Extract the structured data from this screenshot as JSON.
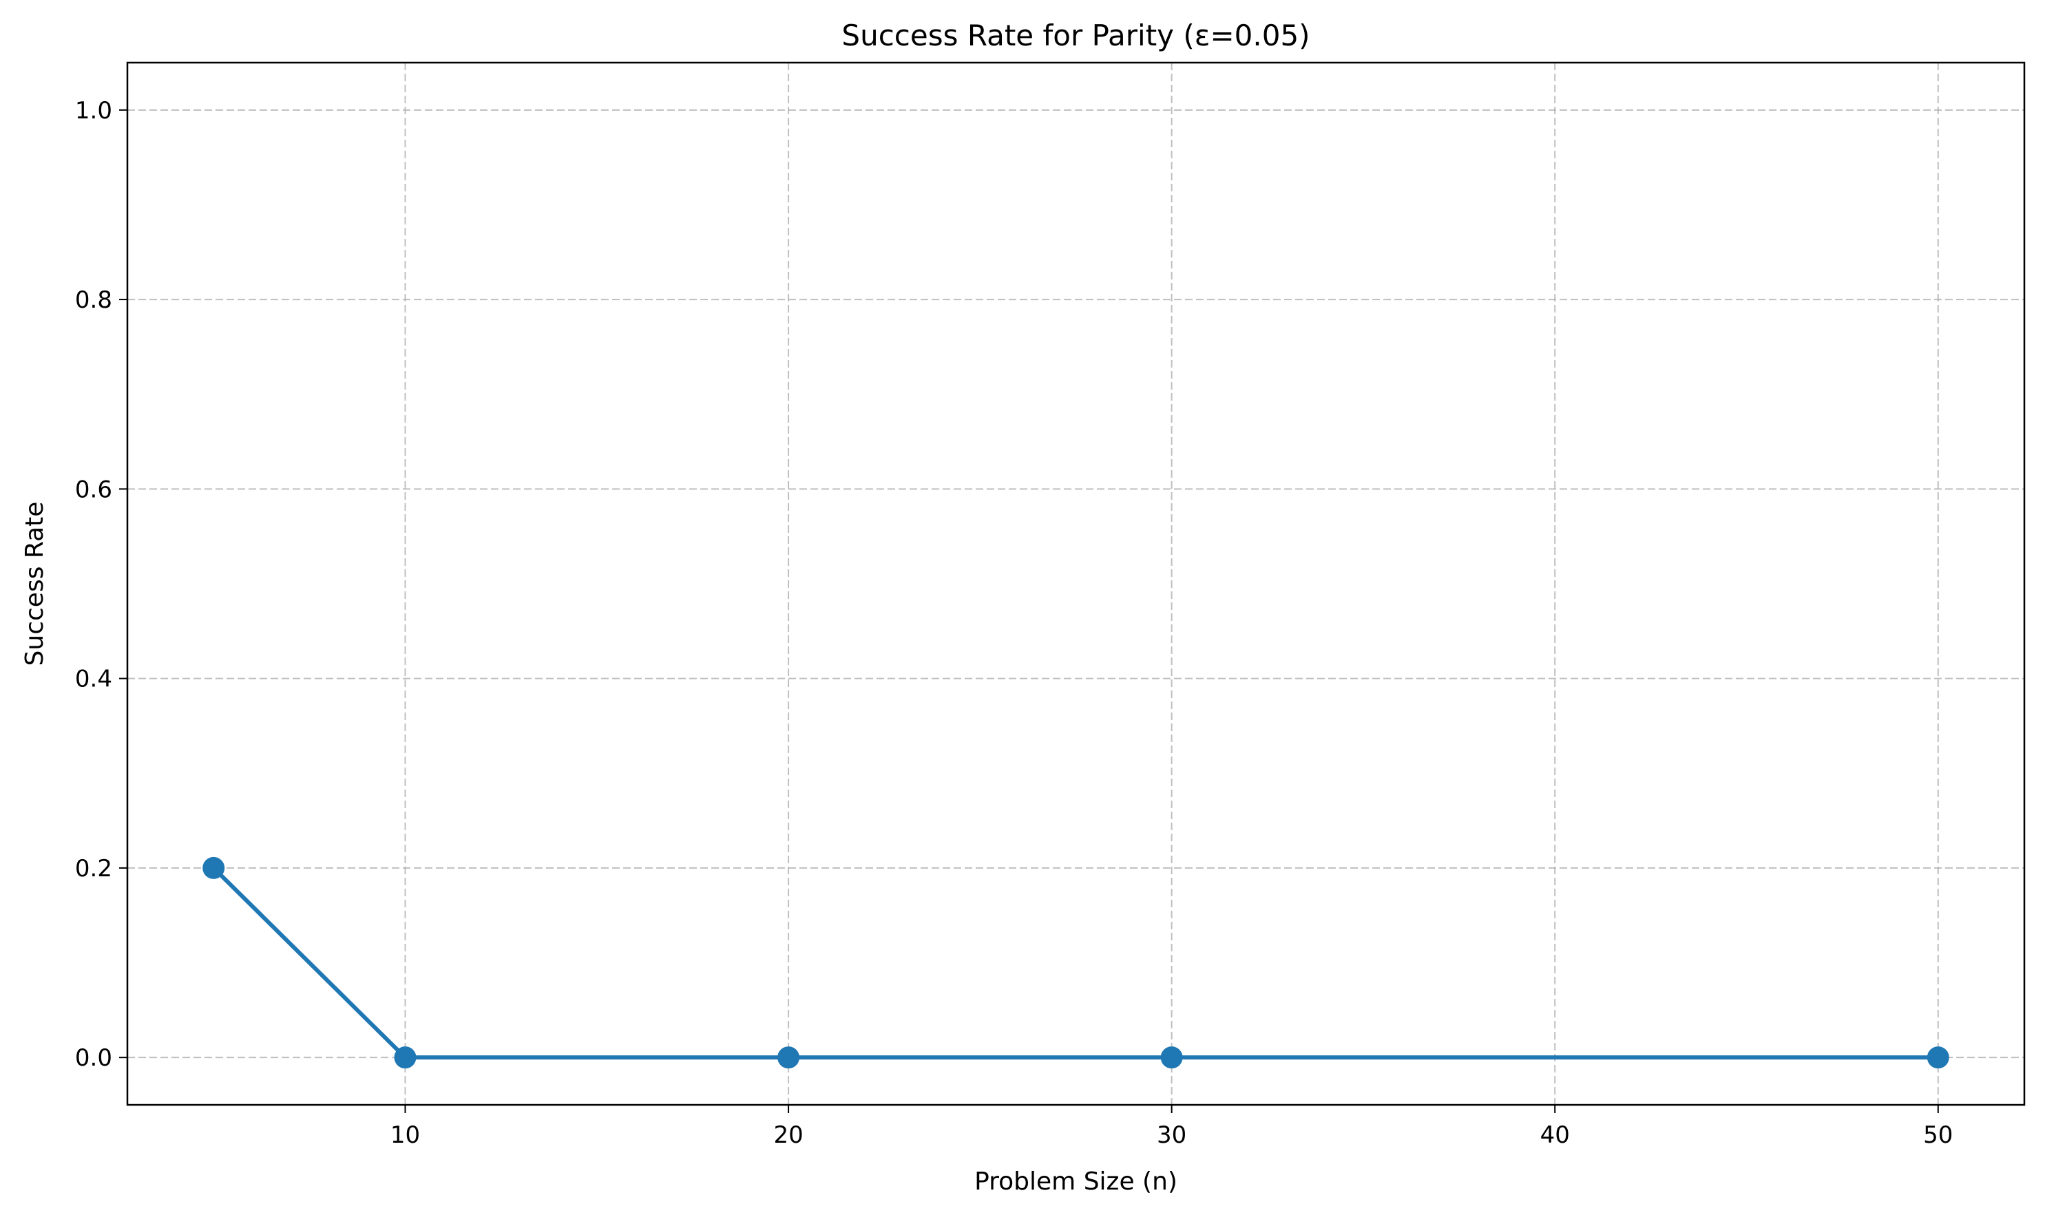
{
  "chart_data": {
    "type": "line",
    "title": "Success Rate for Parity (ε=0.05)",
    "xlabel": "Problem Size (n)",
    "ylabel": "Success Rate",
    "x": [
      5,
      10,
      20,
      30,
      50
    ],
    "series": [
      {
        "values": [
          0.2,
          0.0,
          0.0,
          0.0,
          0.0
        ]
      }
    ],
    "xlim": [
      2.75,
      52.25
    ],
    "ylim": [
      -0.05,
      1.05
    ],
    "xticks": [
      10,
      20,
      30,
      40,
      50
    ],
    "yticks": [
      0.0,
      0.2,
      0.4,
      0.6,
      0.8,
      1.0
    ],
    "xtick_labels": [
      "10",
      "20",
      "30",
      "40",
      "50"
    ],
    "ytick_labels": [
      "0.0",
      "0.2",
      "0.4",
      "0.6",
      "0.8",
      "1.0"
    ],
    "grid": true,
    "color": "#1f77b4"
  }
}
